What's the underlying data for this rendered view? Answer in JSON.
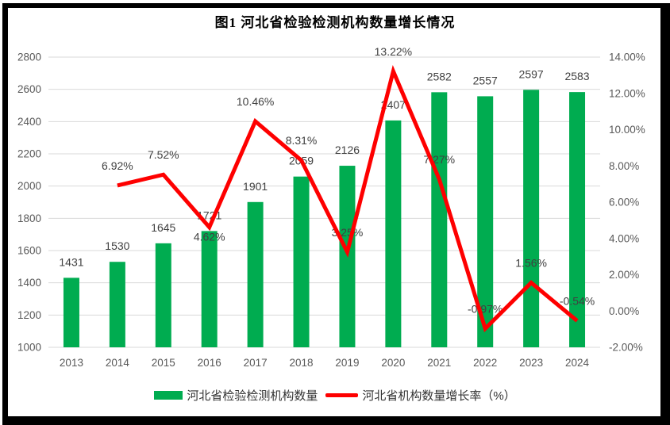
{
  "title": "图1  河北省检验检测机构数量增长情况",
  "colors": {
    "bar": "#00AC50",
    "line": "#FE0000",
    "grid": "#D9D9D9",
    "axis_text": "#595959",
    "data_label": "#404040",
    "title_text": "#000000",
    "frame": "#000000",
    "background": "#FFFFFF"
  },
  "legend": {
    "items": [
      {
        "label": "河北省检验检测机构数量",
        "swatch": "bar"
      },
      {
        "label": "河北省机构数量增长率（%）",
        "swatch": "line"
      }
    ]
  },
  "chart_data": {
    "type": "bar",
    "title": "图1  河北省检验检测机构数量增长情况",
    "categories": [
      "2013",
      "2014",
      "2015",
      "2016",
      "2017",
      "2018",
      "2019",
      "2020",
      "2021",
      "2022",
      "2023",
      "2024"
    ],
    "series": [
      {
        "name": "河北省检验检测机构数量",
        "type": "bar",
        "axis": "left",
        "values": [
          1431,
          1530,
          1645,
          1721,
          1901,
          2059,
          2126,
          2407,
          2582,
          2557,
          2597,
          2583
        ],
        "labels": [
          "1431",
          "1530",
          "1645",
          "1721",
          "1901",
          "2059",
          "2126",
          "2407",
          "2582",
          "2557",
          "2597",
          "2583"
        ]
      },
      {
        "name": "河北省机构数量增长率（%）",
        "type": "line",
        "axis": "right",
        "values": [
          null,
          6.92,
          7.52,
          4.62,
          10.46,
          8.31,
          3.25,
          13.22,
          7.27,
          -0.97,
          1.56,
          -0.54
        ],
        "labels": [
          null,
          "6.92%",
          "7.52%",
          "4.62%",
          "10.46%",
          "8.31%",
          "3.25%",
          "13.22%",
          "7.27%",
          "-0.97%",
          "1.56%",
          "-0.54%"
        ],
        "label_positions": [
          null,
          "above",
          "above",
          "below",
          "above",
          "above",
          "above",
          "above",
          "above",
          "above",
          "above",
          "above"
        ]
      }
    ],
    "left_axis": {
      "min": 1000,
      "max": 2800,
      "step": 200,
      "tick_labels": [
        "1000",
        "1200",
        "1400",
        "1600",
        "1800",
        "2000",
        "2200",
        "2400",
        "2600",
        "2800"
      ]
    },
    "right_axis": {
      "min": -2,
      "max": 14,
      "step": 2,
      "tick_labels": [
        "-2.00%",
        "0.00%",
        "2.00%",
        "4.00%",
        "6.00%",
        "8.00%",
        "10.00%",
        "12.00%",
        "14.00%"
      ]
    },
    "grid": true,
    "legend_position": "bottom",
    "xlabel": "",
    "ylabel": ""
  }
}
